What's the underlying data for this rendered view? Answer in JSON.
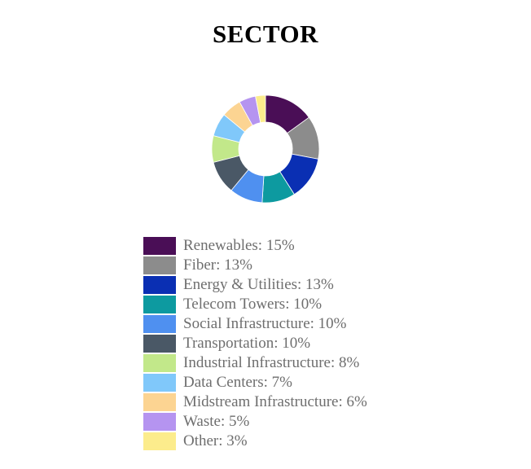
{
  "chart_data": {
    "type": "pie",
    "title": "SECTOR",
    "categories": [
      "Renewables",
      "Fiber",
      "Energy & Utilities",
      "Telecom Towers",
      "Social Infrastructure",
      "Transportation",
      "Industrial Infrastructure",
      "Data Centers",
      "Midstream Infrastructure",
      "Waste",
      "Other"
    ],
    "values": [
      15,
      13,
      13,
      10,
      10,
      10,
      8,
      7,
      6,
      5,
      3
    ],
    "colors": [
      "#4a0e56",
      "#8c8c8c",
      "#0a2fb3",
      "#0d9aa0",
      "#4f90f0",
      "#4a5866",
      "#c2e88a",
      "#80c8fa",
      "#fcd492",
      "#b594f0",
      "#fcec8c"
    ],
    "legend_labels": [
      "Renewables: 15%",
      "Fiber: 13%",
      "Energy & Utilities: 13%",
      "Telecom Towers: 10%",
      "Social Infrastructure: 10%",
      "Transportation: 10%",
      "Industrial Infrastructure: 8%",
      "Data Centers: 7%",
      "Midstream Infrastructure: 6%",
      "Waste: 5%",
      "Other: 3%"
    ],
    "legend_position": "bottom",
    "donut": true
  }
}
